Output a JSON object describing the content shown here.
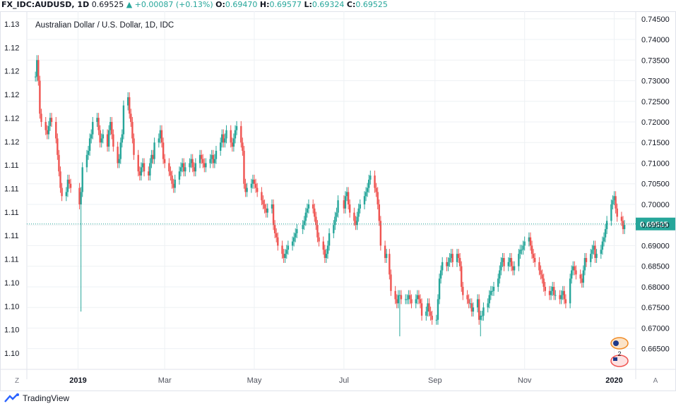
{
  "header": {
    "symbol": "FX_IDC:AUDUSD, 1D",
    "last": "0.69525",
    "change": "▲ +0.00087 (+0.13%)",
    "o_label": "O:",
    "o_value": "0.69470",
    "h_label": "H:",
    "h_value": "0.69577",
    "l_label": "L:",
    "l_value": "0.69324",
    "c_label": "C:",
    "c_value": "0.69525"
  },
  "colors": {
    "up": "#26a69a",
    "down": "#ef5350",
    "grid": "#eef1f4",
    "axis": "#787b86",
    "price_tag": "#26a69a"
  },
  "footer": {
    "brand": "TradingView"
  },
  "axis_buttons": {
    "left": "Z",
    "right": "A"
  },
  "chart_data": {
    "type": "candlestick",
    "title": "Australian Dollar / U.S. Dollar, 1D, IDC",
    "right_axis": {
      "ticks": [
        "0.74500",
        "0.74000",
        "0.73500",
        "0.73000",
        "0.72500",
        "0.72000",
        "0.71500",
        "0.71000",
        "0.70500",
        "0.70000",
        "0.69500",
        "0.69000",
        "0.68500",
        "0.68000",
        "0.67500",
        "0.67000",
        "0.66500"
      ],
      "ylim": [
        0.6605,
        0.7465
      ]
    },
    "left_axis": {
      "ticks": [
        "1.13",
        "1.12",
        "1.12",
        "1.12",
        "1.12",
        "1.12",
        "1.11",
        "1.11",
        "1.11",
        "1.11",
        "1.11",
        "1.10",
        "1.10",
        "1.10",
        "1.10"
      ]
    },
    "x_ticks": [
      "2019",
      "Mar",
      "May",
      "Jul",
      "Sep",
      "Nov",
      "2020"
    ],
    "x_tick_dates": [
      "2019-01-01",
      "2019-03-01",
      "2019-05-01",
      "2019-07-01",
      "2019-09-01",
      "2019-11-01",
      "2020-01-01"
    ],
    "x_range": [
      "2018-12-01",
      "2020-01-07"
    ],
    "last_price": 0.69525,
    "last_price_label": "0.69525",
    "grid": true,
    "series": [
      {
        "month": "2018-12",
        "start": "2018-12-03",
        "ohlc_path": [
          0.731,
          0.735,
          0.73,
          0.722,
          0.72,
          0.718,
          0.717,
          0.719,
          0.721,
          0.72,
          0.716,
          0.712,
          0.708,
          0.704,
          0.702,
          0.703,
          0.706,
          0.705,
          0.704
        ]
      },
      {
        "month": "2019-01",
        "start": "2019-01-02",
        "ohlc_path": [
          0.7,
          0.703,
          0.709,
          0.712,
          0.713,
          0.716,
          0.717,
          0.72,
          0.721,
          0.718,
          0.715,
          0.716,
          0.717,
          0.714,
          0.718,
          0.72,
          0.717,
          0.714,
          0.71,
          0.711,
          0.715,
          0.717
        ]
      },
      {
        "month": "2019-02",
        "start": "2019-02-01",
        "ohlc_path": [
          0.724,
          0.726,
          0.722,
          0.72,
          0.716,
          0.712,
          0.708,
          0.707,
          0.709,
          0.71,
          0.708,
          0.707,
          0.71,
          0.712,
          0.711,
          0.715,
          0.716,
          0.718,
          0.715,
          0.711
        ]
      },
      {
        "month": "2019-03",
        "start": "2019-03-01",
        "ohlc_path": [
          0.71,
          0.708,
          0.707,
          0.705,
          0.704,
          0.706,
          0.708,
          0.709,
          0.71,
          0.708,
          0.709,
          0.71,
          0.711,
          0.709,
          0.708,
          0.71,
          0.712,
          0.711,
          0.71,
          0.709,
          0.71
        ]
      },
      {
        "month": "2019-04",
        "start": "2019-04-01",
        "ohlc_path": [
          0.711,
          0.712,
          0.71,
          0.711,
          0.713,
          0.715,
          0.717,
          0.715,
          0.716,
          0.718,
          0.715,
          0.714,
          0.716,
          0.718,
          0.719,
          0.715,
          0.713,
          0.705,
          0.703,
          0.704,
          0.705,
          0.706
        ]
      },
      {
        "month": "2019-05",
        "start": "2019-05-01",
        "ohlc_path": [
          0.705,
          0.704,
          0.703,
          0.701,
          0.7,
          0.699,
          0.698,
          0.699,
          0.7,
          0.695,
          0.693,
          0.692,
          0.69,
          0.688,
          0.687,
          0.688,
          0.689,
          0.69,
          0.691,
          0.692,
          0.693,
          0.694
        ]
      },
      {
        "month": "2019-06",
        "start": "2019-06-03",
        "ohlc_path": [
          0.695,
          0.696,
          0.698,
          0.699,
          0.7,
          0.699,
          0.697,
          0.695,
          0.692,
          0.691,
          0.689,
          0.687,
          0.688,
          0.69,
          0.693,
          0.695,
          0.697,
          0.698,
          0.701
        ]
      },
      {
        "month": "2019-07",
        "start": "2019-07-01",
        "ohlc_path": [
          0.699,
          0.702,
          0.703,
          0.7,
          0.698,
          0.696,
          0.695,
          0.697,
          0.699,
          0.7,
          0.702,
          0.703,
          0.704,
          0.706,
          0.707,
          0.704,
          0.703,
          0.7,
          0.696,
          0.69,
          0.687,
          0.688
        ]
      },
      {
        "month": "2019-08",
        "start": "2019-08-01",
        "ohlc_path": [
          0.683,
          0.679,
          0.677,
          0.676,
          0.678,
          0.678,
          0.677,
          0.677,
          0.677,
          0.678,
          0.677,
          0.676,
          0.677,
          0.678,
          0.677,
          0.676,
          0.673,
          0.674,
          0.676,
          0.674,
          0.673,
          0.672
        ]
      },
      {
        "month": "2019-09",
        "start": "2019-09-02",
        "ohlc_path": [
          0.672,
          0.677,
          0.682,
          0.684,
          0.686,
          0.685,
          0.686,
          0.687,
          0.688,
          0.686,
          0.688,
          0.687,
          0.685,
          0.68,
          0.678,
          0.677,
          0.676,
          0.676,
          0.674,
          0.675,
          0.677
        ]
      },
      {
        "month": "2019-10",
        "start": "2019-10-01",
        "ohlc_path": [
          0.672,
          0.673,
          0.673,
          0.675,
          0.676,
          0.678,
          0.679,
          0.679,
          0.68,
          0.682,
          0.684,
          0.686,
          0.687,
          0.685,
          0.686,
          0.687,
          0.685,
          0.684,
          0.685,
          0.688,
          0.689,
          0.689,
          0.69
        ]
      },
      {
        "month": "2019-11",
        "start": "2019-11-01",
        "ohlc_path": [
          0.691,
          0.692,
          0.69,
          0.688,
          0.687,
          0.686,
          0.684,
          0.683,
          0.682,
          0.68,
          0.679,
          0.678,
          0.679,
          0.68,
          0.678,
          0.678,
          0.677,
          0.678,
          0.679,
          0.677,
          0.676
        ]
      },
      {
        "month": "2019-12",
        "start": "2019-12-02",
        "ohlc_path": [
          0.682,
          0.684,
          0.685,
          0.684,
          0.683,
          0.682,
          0.681,
          0.684,
          0.687,
          0.686,
          0.688,
          0.689,
          0.69,
          0.687,
          0.688,
          0.689,
          0.691,
          0.692,
          0.694,
          0.696,
          0.7,
          0.701,
          0.702
        ]
      },
      {
        "month": "2020-01",
        "start": "2020-01-02",
        "ohlc_path": [
          0.699,
          0.697,
          0.696,
          0.694,
          0.695
        ]
      }
    ],
    "wick_extremes": [
      {
        "date": "2019-01-03",
        "low": 0.674
      },
      {
        "date": "2019-08-08",
        "low": 0.668
      },
      {
        "date": "2019-10-02",
        "low": 0.668
      }
    ],
    "flag_badge": "2"
  }
}
